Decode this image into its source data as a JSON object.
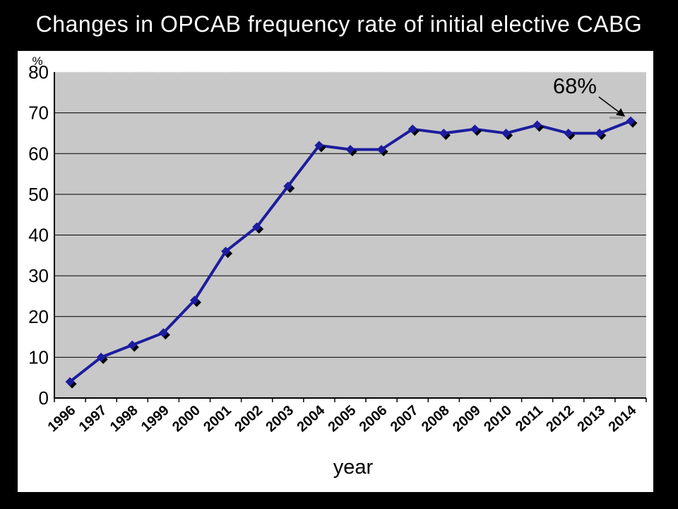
{
  "slide": {
    "title": "Changes in OPCAB frequency rate of initial elective CABG",
    "background_color": "#000000",
    "title_color": "#FFFFFF"
  },
  "chart_data": {
    "type": "line",
    "title": "Changes in OPCAB frequency rate of initial elective CABG",
    "categories": [
      "1996",
      "1997",
      "1998",
      "1999",
      "2000",
      "2001",
      "2002",
      "2003",
      "2004",
      "2005",
      "2006",
      "2007",
      "2008",
      "2009",
      "2010",
      "2011",
      "2012",
      "2013",
      "2014"
    ],
    "values": [
      4,
      10,
      13,
      16,
      24,
      36,
      42,
      52,
      62,
      61,
      61,
      66,
      65,
      66,
      65,
      67,
      65,
      65,
      68
    ],
    "series_name": "OPCAB frequency rate",
    "xlabel": "year",
    "ylabel": "%",
    "ylim": [
      0,
      80
    ],
    "yticks": [
      0,
      10,
      20,
      30,
      40,
      50,
      60,
      70,
      80
    ],
    "grid": true,
    "legend": false,
    "marker": "diamond",
    "annotation": {
      "text": "68%",
      "category": "2014",
      "value": 68
    },
    "colors": {
      "line": "#1C1C9E",
      "marker": "#1C1C9E",
      "marker_shadow": "#000000",
      "plot_bg": "#C8C8C8",
      "gridline": "#000000",
      "top_gridline": "#E6E6E6",
      "panel_bg": "#FFFFFF",
      "axis_text": "#000000",
      "annotation_text": "#000000"
    }
  }
}
